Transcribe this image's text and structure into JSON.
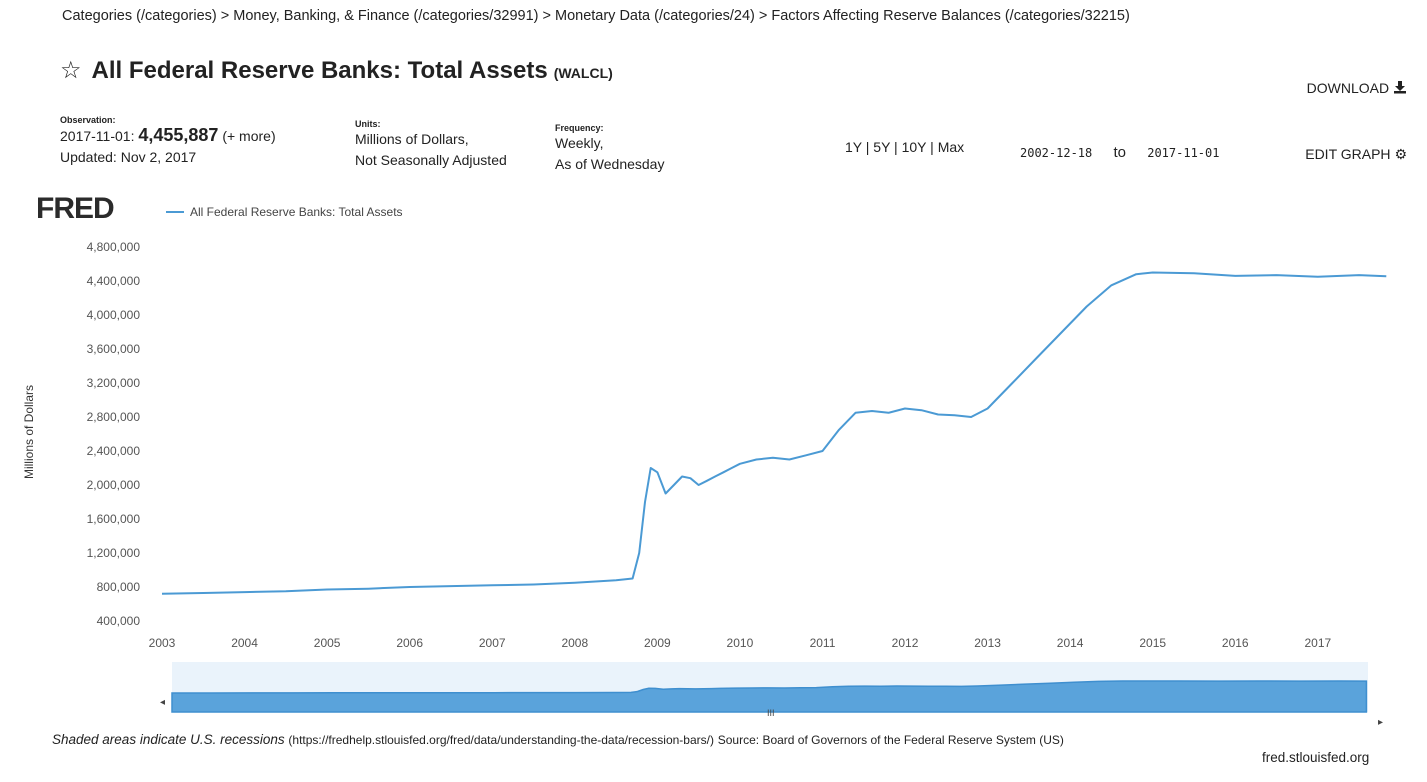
{
  "breadcrumb": "Categories (/categories) > Money, Banking, & Finance (/categories/32991) > Monetary Data (/categories/24) > Factors Affecting Reserve Balances (/categories/32215)",
  "title": "All Federal Reserve Banks: Total Assets",
  "series_id": "(WALCL)",
  "download_label": "DOWNLOAD",
  "edit_graph_label": "EDIT GRAPH",
  "observation": {
    "label": "Observation:",
    "date": "2017-11-01:",
    "value": "4,455,887",
    "more": "(+ more)",
    "updated": "Updated: Nov 2, 2017"
  },
  "units": {
    "label": "Units:",
    "line1": "Millions of Dollars,",
    "line2": "Not Seasonally Adjusted"
  },
  "frequency": {
    "label": "Frequency:",
    "line1": "Weekly,",
    "line2": "As of Wednesday"
  },
  "range_buttons": [
    "1Y",
    "5Y",
    "10Y",
    "Max"
  ],
  "date_from": "2002-12-18",
  "date_to_label": "to",
  "date_to": "2017-11-01",
  "logo": "FRED",
  "footer": {
    "recession_note": "Shaded areas indicate U.S. recessions",
    "url_fragment": "(https://fredhelp.stlouisfed.org/fred/data/understanding-the-data/recession-bars/)",
    "source": "Source: Board of Governors of the Federal Reserve System (US)",
    "site": "fred.stlouisfed.org"
  },
  "colors": {
    "series_line": "#4b9ad4",
    "navigator_fill": "#5aa3db"
  },
  "chart_data": {
    "type": "line",
    "ylabel": "Millions of Dollars",
    "legend": "All Federal Reserve Banks: Total Assets",
    "ylim": [
      400000,
      4800000
    ],
    "yticks": [
      "4,800,000",
      "4,400,000",
      "4,000,000",
      "3,600,000",
      "3,200,000",
      "2,800,000",
      "2,400,000",
      "2,000,000",
      "1,600,000",
      "1,200,000",
      "800,000",
      "400,000"
    ],
    "xlim": [
      2003.0,
      2017.85
    ],
    "xticks": [
      "2003",
      "2004",
      "2005",
      "2006",
      "2007",
      "2008",
      "2009",
      "2010",
      "2011",
      "2012",
      "2013",
      "2014",
      "2015",
      "2016",
      "2017"
    ],
    "series": [
      {
        "name": "All Federal Reserve Banks: Total Assets",
        "x": [
          2003.0,
          2003.5,
          2004.0,
          2004.5,
          2005.0,
          2005.5,
          2006.0,
          2006.5,
          2007.0,
          2007.5,
          2008.0,
          2008.5,
          2008.7,
          2008.78,
          2008.85,
          2008.92,
          2009.0,
          2009.1,
          2009.2,
          2009.3,
          2009.4,
          2009.5,
          2009.6,
          2009.7,
          2009.8,
          2009.9,
          2010.0,
          2010.2,
          2010.4,
          2010.6,
          2010.8,
          2011.0,
          2011.2,
          2011.4,
          2011.6,
          2011.8,
          2012.0,
          2012.2,
          2012.4,
          2012.6,
          2012.8,
          2013.0,
          2013.3,
          2013.6,
          2013.9,
          2014.2,
          2014.5,
          2014.8,
          2015.0,
          2015.5,
          2016.0,
          2016.5,
          2017.0,
          2017.5,
          2017.83
        ],
        "y": [
          720000,
          730000,
          740000,
          750000,
          770000,
          780000,
          800000,
          810000,
          820000,
          830000,
          850000,
          880000,
          900000,
          1200000,
          1800000,
          2200000,
          2150000,
          1900000,
          2000000,
          2100000,
          2080000,
          2000000,
          2050000,
          2100000,
          2150000,
          2200000,
          2250000,
          2300000,
          2320000,
          2300000,
          2350000,
          2400000,
          2650000,
          2850000,
          2870000,
          2850000,
          2900000,
          2880000,
          2830000,
          2820000,
          2800000,
          2900000,
          3200000,
          3500000,
          3800000,
          4100000,
          4350000,
          4480000,
          4500000,
          4490000,
          4460000,
          4470000,
          4450000,
          4470000,
          4455887
        ]
      }
    ]
  }
}
